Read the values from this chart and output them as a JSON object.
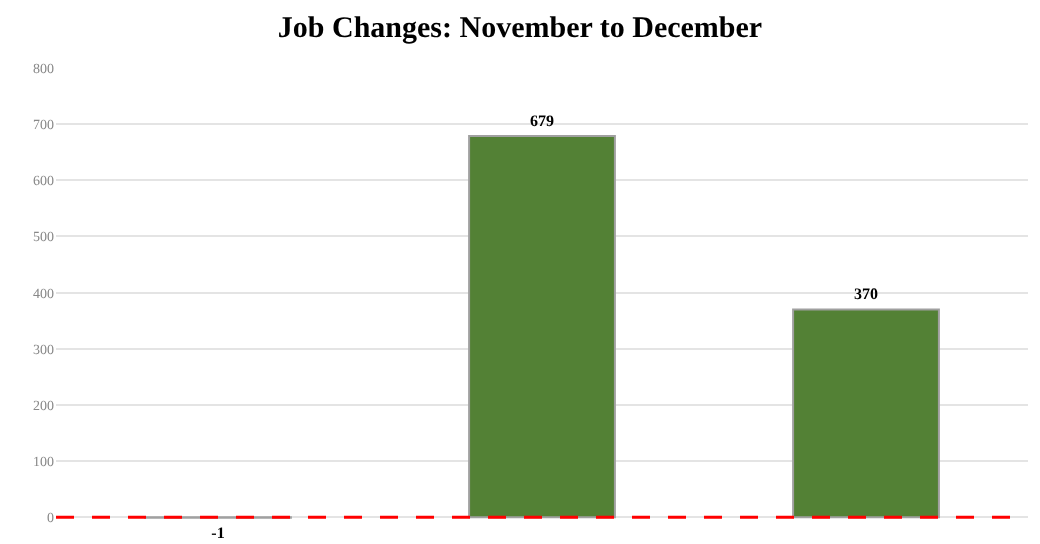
{
  "chart_data": {
    "type": "bar",
    "title": "Job Changes: November to December",
    "categories": [
      null,
      null,
      null
    ],
    "values": [
      -1,
      679,
      370
    ],
    "color": "#538135",
    "ylim": [
      -5,
      800
    ],
    "yticks": [
      0,
      100,
      200,
      300,
      400,
      500,
      600,
      700,
      800
    ],
    "grid": "y",
    "data_labels": true,
    "tick_labels": "y",
    "ref_lines": [
      {
        "axis": "y",
        "value": 0,
        "label": null,
        "color": "#ff0000",
        "line_style": "dashed"
      }
    ]
  }
}
